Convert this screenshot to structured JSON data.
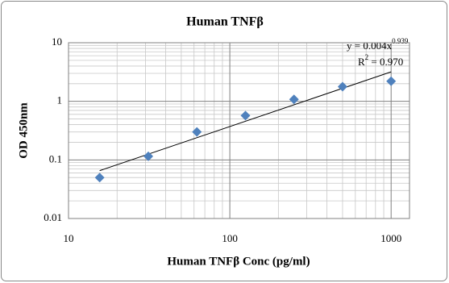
{
  "chart_data": {
    "type": "scatter",
    "title": "Human TNFβ",
    "x_label": "Human TNFβ Conc (pg/ml)",
    "y_label": "OD 450nm",
    "series": [
      {
        "name": "OD",
        "color": "#4f81bd",
        "x": [
          15.6,
          31.25,
          62.5,
          125,
          250,
          500,
          1000
        ],
        "values": [
          0.05,
          0.115,
          0.3,
          0.57,
          1.08,
          1.78,
          2.2
        ]
      }
    ],
    "xlim": [
      10,
      1300
    ],
    "ylim": [
      0.01,
      10
    ],
    "xticks": [
      10,
      100,
      1000
    ],
    "yticks": [
      0.01,
      0.1,
      1,
      10
    ],
    "log_x": true,
    "log_y": true,
    "grid": true,
    "minor_grid": true,
    "trendline": {
      "type": "power",
      "color": "#000000",
      "equation": "y = 0.004x",
      "exponent": "0.939",
      "r_squared_symbol": "R",
      "r_squared_power": "2",
      "r_squared_value": " = 0.970"
    }
  }
}
